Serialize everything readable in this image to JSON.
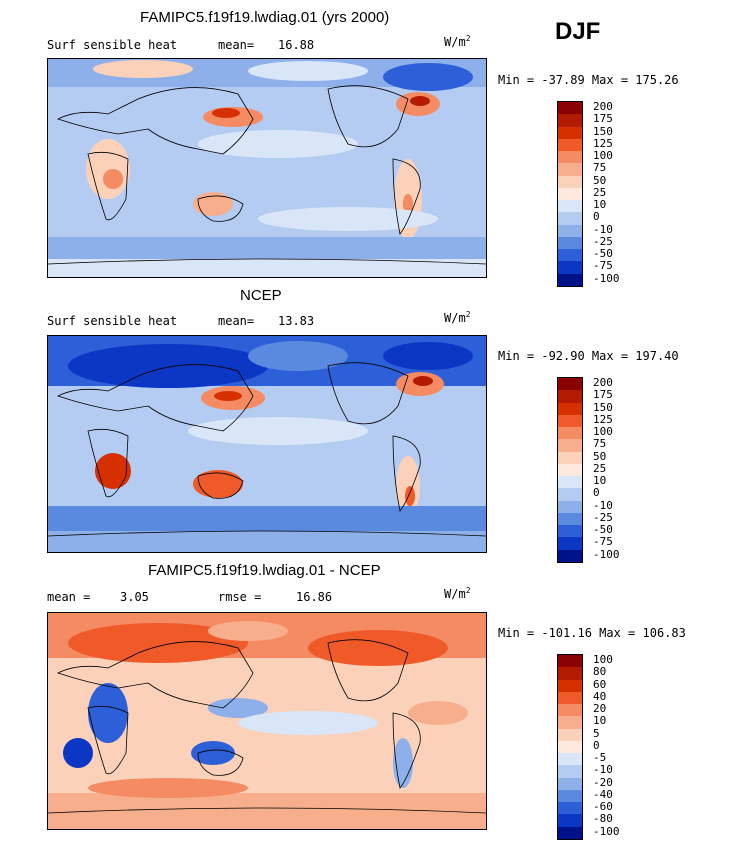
{
  "season": "DJF",
  "units": "W/m",
  "units_sup": "2",
  "panels": [
    {
      "title": "FAMIPC5.f19f19.lwdiag.01 (yrs 2000)",
      "variable": "Surf sensible heat",
      "mean_label": "mean=",
      "mean_value": "16.88",
      "minmax": "Min = -37.89 Max = 175.26",
      "levels": [
        "200",
        "175",
        "150",
        "125",
        "100",
        "75",
        "50",
        "25",
        "10",
        "0",
        "-10",
        "-25",
        "-50",
        "-75",
        "-100"
      ],
      "colors": [
        "#8b0000",
        "#b31b00",
        "#d73000",
        "#ef5a28",
        "#f48b62",
        "#f7ae8c",
        "#fbd1ba",
        "#fde9dd",
        "#d8e6f7",
        "#b4ccf1",
        "#8db0ea",
        "#5a8ae0",
        "#2d5fd8",
        "#0c36c4",
        "#00128a"
      ]
    },
    {
      "title": "NCEP",
      "variable": "Surf sensible heat",
      "mean_label": "mean=",
      "mean_value": "13.83",
      "minmax": "Min = -92.90 Max = 197.40",
      "levels": [
        "200",
        "175",
        "150",
        "125",
        "100",
        "75",
        "50",
        "25",
        "10",
        "0",
        "-10",
        "-25",
        "-50",
        "-75",
        "-100"
      ],
      "colors": [
        "#8b0000",
        "#b31b00",
        "#d73000",
        "#ef5a28",
        "#f48b62",
        "#f7ae8c",
        "#fbd1ba",
        "#fde9dd",
        "#d8e6f7",
        "#b4ccf1",
        "#8db0ea",
        "#5a8ae0",
        "#2d5fd8",
        "#0c36c4",
        "#00128a"
      ]
    },
    {
      "title": "FAMIPC5.f19f19.lwdiag.01 - NCEP",
      "mean_label": "mean =",
      "mean_value": "3.05",
      "rmse_label": "rmse =",
      "rmse_value": "16.86",
      "minmax": "Min = -101.16 Max = 106.83",
      "levels": [
        "100",
        "80",
        "60",
        "40",
        "20",
        "10",
        "5",
        "0",
        "-5",
        "-10",
        "-20",
        "-40",
        "-60",
        "-80",
        "-100"
      ],
      "colors": [
        "#8b0000",
        "#b31b00",
        "#d73000",
        "#ef5a28",
        "#f48b62",
        "#f7ae8c",
        "#fbd1ba",
        "#fde9dd",
        "#d8e6f7",
        "#b4ccf1",
        "#8db0ea",
        "#5a8ae0",
        "#2d5fd8",
        "#0c36c4",
        "#00128a"
      ]
    }
  ],
  "chart_data": [
    {
      "type": "heatmap",
      "title": "FAMIPC5.f19f19.lwdiag.01 (yrs 2000)",
      "variable": "Surf sensible heat",
      "units": "W/m^2",
      "mean": 16.88,
      "min": -37.89,
      "max": 175.26,
      "levels": [
        200,
        175,
        150,
        125,
        100,
        75,
        50,
        25,
        10,
        0,
        -10,
        -25,
        -50,
        -75,
        -100
      ]
    },
    {
      "type": "heatmap",
      "title": "NCEP",
      "variable": "Surf sensible heat",
      "units": "W/m^2",
      "mean": 13.83,
      "min": -92.9,
      "max": 197.4,
      "levels": [
        200,
        175,
        150,
        125,
        100,
        75,
        50,
        25,
        10,
        0,
        -10,
        -25,
        -50,
        -75,
        -100
      ]
    },
    {
      "type": "heatmap",
      "title": "FAMIPC5.f19f19.lwdiag.01 - NCEP",
      "units": "W/m^2",
      "mean": 3.05,
      "rmse": 16.86,
      "min": -101.16,
      "max": 106.83,
      "levels": [
        100,
        80,
        60,
        40,
        20,
        10,
        5,
        0,
        -5,
        -10,
        -20,
        -40,
        -60,
        -80,
        -100
      ]
    }
  ]
}
